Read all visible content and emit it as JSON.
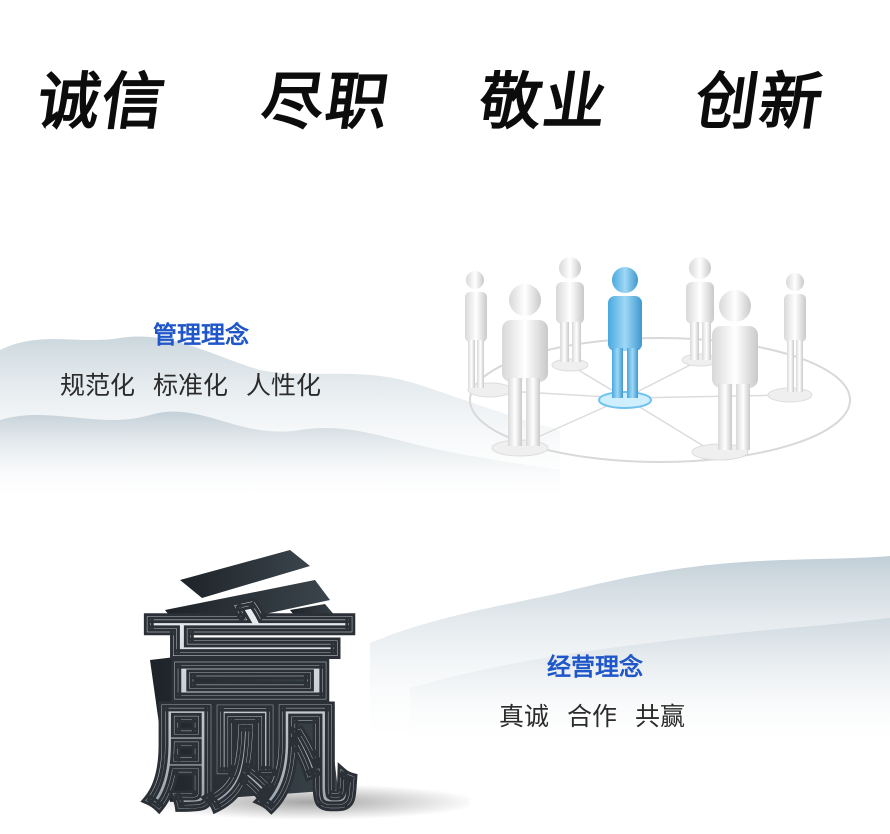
{
  "motto": {
    "words": [
      "诚信",
      "尽职",
      "敬业",
      "创新"
    ]
  },
  "management": {
    "heading": "管理理念",
    "values": [
      "规范化",
      "标准化",
      "人性化"
    ]
  },
  "business": {
    "heading": "经营理念",
    "values": [
      "真诚",
      "合作",
      "共赢"
    ]
  },
  "illustrations": {
    "network_icon": "people-network-icon",
    "win_icon": "win-character-3d-icon",
    "win_character": "赢"
  },
  "colors": {
    "heading_blue": "#1f56c9",
    "text_dark": "#2b2b2b",
    "highlight_person": "#5fb6e6"
  }
}
